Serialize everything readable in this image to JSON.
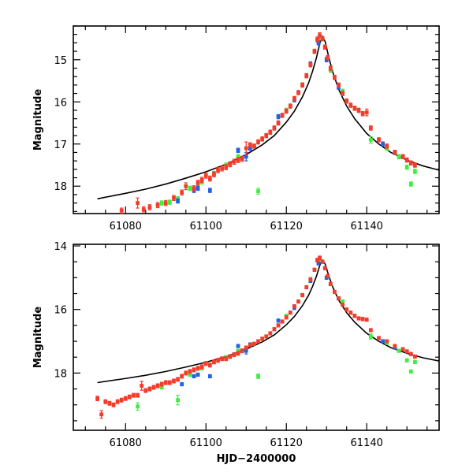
{
  "colors": {
    "red": "#f23c2c",
    "green": "#3ef03e",
    "blue": "#1f63e8",
    "model": "#000000"
  },
  "chart_data": [
    {
      "type": "scatter",
      "ylabel": "Magnitude",
      "xlabel": "",
      "xlim": [
        61067,
        61158
      ],
      "ylim": [
        18.65,
        14.2
      ],
      "xticks": [
        61080,
        61100,
        61120,
        61140
      ],
      "yticks": [
        15,
        16,
        17,
        18
      ],
      "model": {
        "x": [
          61073,
          61080,
          61085,
          61090,
          61095,
          61100,
          61105,
          61110,
          61114,
          61117,
          61120,
          61122,
          61124,
          61125.5,
          61126.5,
          61127.5,
          61128.3,
          61129,
          61129.7,
          61130.5,
          61131.5,
          61133,
          61135,
          61137,
          61140,
          61143,
          61146,
          61150,
          61154,
          61158
        ],
        "y": [
          18.3,
          18.17,
          18.07,
          17.95,
          17.81,
          17.66,
          17.48,
          17.25,
          17.02,
          16.8,
          16.48,
          16.22,
          15.88,
          15.56,
          15.28,
          14.95,
          14.62,
          14.45,
          14.58,
          14.92,
          15.28,
          15.7,
          16.1,
          16.4,
          16.75,
          17.0,
          17.2,
          17.38,
          17.52,
          17.62
        ]
      },
      "series": [
        {
          "name": "red",
          "x": [
            61079,
            61083,
            61084.5,
            61086,
            61088,
            61090,
            61092,
            61094,
            61095,
            61097,
            61098,
            61099,
            61100,
            61101,
            61102,
            61103,
            61104,
            61105,
            61106,
            61107,
            61108,
            61109,
            61110,
            61111,
            61112,
            61113,
            61114,
            61115,
            61116,
            61117,
            61118,
            61119,
            61120,
            61121,
            61122,
            61123,
            61124,
            61125,
            61126,
            61127,
            61127.7,
            61128.3,
            61129,
            61129.6,
            61130.3,
            61131,
            61132,
            61133,
            61134,
            61135,
            61136,
            61137,
            61138,
            61139,
            61140,
            61141,
            61143,
            61145,
            61147,
            61149,
            61150,
            61151,
            61152
          ],
          "y": [
            18.58,
            18.4,
            18.55,
            18.5,
            18.45,
            18.4,
            18.28,
            18.15,
            18.0,
            18.05,
            17.92,
            17.85,
            17.75,
            17.82,
            17.72,
            17.62,
            17.58,
            17.55,
            17.48,
            17.42,
            17.38,
            17.35,
            17.1,
            17.02,
            17.05,
            16.95,
            16.88,
            16.8,
            16.72,
            16.62,
            16.5,
            16.32,
            16.22,
            16.1,
            15.92,
            15.78,
            15.6,
            15.38,
            15.12,
            14.8,
            14.52,
            14.42,
            14.5,
            14.7,
            14.95,
            15.2,
            15.42,
            15.6,
            15.8,
            15.98,
            16.08,
            16.15,
            16.2,
            16.28,
            16.25,
            16.62,
            16.9,
            17.05,
            17.2,
            17.3,
            17.38,
            17.45,
            17.5
          ],
          "err": [
            0.06,
            0.12,
            0.06,
            0.06,
            0.06,
            0.06,
            0.06,
            0.06,
            0.08,
            0.06,
            0.06,
            0.06,
            0.06,
            0.06,
            0.06,
            0.06,
            0.06,
            0.06,
            0.06,
            0.06,
            0.06,
            0.06,
            0.15,
            0.05,
            0.05,
            0.05,
            0.05,
            0.05,
            0.05,
            0.05,
            0.05,
            0.05,
            0.05,
            0.05,
            0.05,
            0.05,
            0.05,
            0.05,
            0.05,
            0.05,
            0.06,
            0.06,
            0.05,
            0.05,
            0.05,
            0.05,
            0.05,
            0.05,
            0.05,
            0.05,
            0.05,
            0.05,
            0.05,
            0.05,
            0.08,
            0.05,
            0.05,
            0.05,
            0.05,
            0.05,
            0.05,
            0.05,
            0.05
          ]
        },
        {
          "name": "green",
          "x": [
            61089,
            61091,
            61093,
            61096,
            61099,
            61102,
            61105,
            61108,
            61113,
            61120,
            61124,
            61128,
            61131,
            61134,
            61137,
            61141,
            61145,
            61148,
            61150,
            61151,
            61152
          ],
          "y": [
            18.4,
            18.38,
            18.3,
            18.05,
            17.9,
            17.7,
            17.5,
            17.3,
            18.12,
            16.2,
            15.6,
            14.55,
            15.25,
            15.75,
            16.15,
            16.9,
            17.1,
            17.3,
            17.55,
            17.95,
            17.65
          ],
          "err": [
            0.05,
            0.05,
            0.05,
            0.05,
            0.05,
            0.05,
            0.05,
            0.05,
            0.07,
            0.05,
            0.05,
            0.05,
            0.05,
            0.05,
            0.05,
            0.08,
            0.05,
            0.05,
            0.05,
            0.05,
            0.05
          ]
        },
        {
          "name": "blue",
          "x": [
            61093,
            61097,
            61098,
            61101,
            61108,
            61110,
            61111,
            61118,
            61122,
            61126,
            61128,
            61130,
            61133,
            61144,
            61147
          ],
          "y": [
            18.35,
            18.1,
            18.05,
            18.1,
            17.15,
            17.3,
            17.1,
            16.35,
            15.95,
            15.1,
            14.6,
            15.0,
            15.65,
            17.0,
            17.2
          ],
          "err": [
            0.05,
            0.05,
            0.05,
            0.05,
            0.05,
            0.1,
            0.05,
            0.05,
            0.05,
            0.05,
            0.05,
            0.05,
            0.05,
            0.05,
            0.05
          ]
        }
      ]
    },
    {
      "type": "scatter",
      "ylabel": "Magnitude",
      "xlabel": "HJD−2400000",
      "xlim": [
        61067,
        61158
      ],
      "ylim": [
        19.8,
        13.95
      ],
      "xticks": [
        61080,
        61100,
        61120,
        61140
      ],
      "yticks": [
        14,
        16,
        18
      ],
      "model": {
        "x": [
          61073,
          61080,
          61085,
          61090,
          61095,
          61100,
          61105,
          61110,
          61114,
          61117,
          61120,
          61122,
          61124,
          61125.5,
          61126.5,
          61127.5,
          61128.3,
          61129,
          61129.7,
          61130.5,
          61131.5,
          61133,
          61135,
          61137,
          61140,
          61143,
          61146,
          61150,
          61154,
          61158
        ],
        "y": [
          18.3,
          18.17,
          18.07,
          17.95,
          17.81,
          17.66,
          17.48,
          17.25,
          17.02,
          16.8,
          16.48,
          16.22,
          15.88,
          15.56,
          15.28,
          14.95,
          14.62,
          14.45,
          14.58,
          14.92,
          15.28,
          15.7,
          16.1,
          16.4,
          16.75,
          17.0,
          17.2,
          17.38,
          17.52,
          17.62
        ]
      },
      "series": [
        {
          "name": "red",
          "x": [
            61073,
            61074,
            61075,
            61076,
            61077,
            61078,
            61079,
            61080,
            61081,
            61082,
            61083,
            61084,
            61085,
            61086,
            61087,
            61088,
            61089,
            61090,
            61091,
            61092,
            61093,
            61094,
            61095,
            61096,
            61097,
            61098,
            61099,
            61100,
            61101,
            61102,
            61103,
            61104,
            61105,
            61106,
            61107,
            61108,
            61109,
            61110,
            61111,
            61112,
            61113,
            61114,
            61115,
            61116,
            61117,
            61118,
            61119,
            61120,
            61121,
            61122,
            61123,
            61124,
            61125,
            61126,
            61127,
            61127.7,
            61128.3,
            61129,
            61129.6,
            61130.3,
            61131,
            61132,
            61133,
            61134,
            61135,
            61136,
            61137,
            61138,
            61139,
            61140,
            61141,
            61143,
            61145,
            61147,
            61149,
            61150,
            61151,
            61152
          ],
          "y": [
            18.8,
            19.3,
            18.9,
            18.95,
            19.0,
            18.9,
            18.85,
            18.8,
            18.75,
            18.7,
            18.7,
            18.4,
            18.55,
            18.5,
            18.45,
            18.4,
            18.35,
            18.3,
            18.3,
            18.25,
            18.2,
            18.1,
            18.0,
            17.95,
            17.9,
            17.85,
            17.8,
            17.7,
            17.75,
            17.65,
            17.6,
            17.55,
            17.55,
            17.48,
            17.42,
            17.38,
            17.3,
            17.2,
            17.12,
            17.08,
            17.0,
            16.92,
            16.85,
            16.75,
            16.62,
            16.5,
            16.38,
            16.25,
            16.1,
            15.9,
            15.75,
            15.55,
            15.3,
            15.05,
            14.75,
            14.45,
            14.38,
            14.5,
            14.7,
            14.95,
            15.2,
            15.45,
            15.65,
            15.85,
            16.0,
            16.1,
            16.2,
            16.28,
            16.3,
            16.32,
            16.65,
            16.9,
            17.0,
            17.15,
            17.25,
            17.32,
            17.4,
            17.48
          ],
          "err": [
            0.07,
            0.12,
            0.06,
            0.06,
            0.06,
            0.06,
            0.06,
            0.06,
            0.06,
            0.06,
            0.06,
            0.14,
            0.06,
            0.06,
            0.06,
            0.06,
            0.06,
            0.06,
            0.06,
            0.06,
            0.06,
            0.06,
            0.06,
            0.06,
            0.06,
            0.06,
            0.06,
            0.06,
            0.06,
            0.06,
            0.06,
            0.06,
            0.06,
            0.06,
            0.06,
            0.06,
            0.06,
            0.05,
            0.05,
            0.05,
            0.05,
            0.05,
            0.05,
            0.05,
            0.05,
            0.05,
            0.05,
            0.05,
            0.05,
            0.05,
            0.05,
            0.05,
            0.05,
            0.05,
            0.05,
            0.06,
            0.06,
            0.05,
            0.05,
            0.05,
            0.05,
            0.05,
            0.05,
            0.05,
            0.05,
            0.05,
            0.05,
            0.05,
            0.05,
            0.05,
            0.05,
            0.05,
            0.05,
            0.05,
            0.05,
            0.05,
            0.05,
            0.05
          ]
        },
        {
          "name": "green",
          "x": [
            61083,
            61089,
            61093,
            61096,
            61099,
            61102,
            61105,
            61108,
            61113,
            61120,
            61124,
            61128,
            61131,
            61134,
            61137,
            61141,
            61145,
            61148,
            61150,
            61151,
            61152
          ],
          "y": [
            19.05,
            18.45,
            18.85,
            18.05,
            17.85,
            17.65,
            17.5,
            17.3,
            18.1,
            16.2,
            15.55,
            14.5,
            15.2,
            15.75,
            16.2,
            16.85,
            17.05,
            17.3,
            17.6,
            17.95,
            17.65
          ],
          "err": [
            0.12,
            0.05,
            0.15,
            0.05,
            0.05,
            0.05,
            0.05,
            0.05,
            0.07,
            0.05,
            0.05,
            0.05,
            0.05,
            0.05,
            0.05,
            0.08,
            0.05,
            0.05,
            0.05,
            0.05,
            0.05
          ]
        },
        {
          "name": "blue",
          "x": [
            61094,
            61097,
            61098,
            61101,
            61108,
            61110,
            61111,
            61118,
            61122,
            61126,
            61128,
            61130,
            61133,
            61144,
            61147
          ],
          "y": [
            18.35,
            18.1,
            18.05,
            18.1,
            17.15,
            17.3,
            17.1,
            16.35,
            15.95,
            15.1,
            14.55,
            15.0,
            15.65,
            17.0,
            17.2
          ],
          "err": [
            0.05,
            0.05,
            0.05,
            0.05,
            0.05,
            0.1,
            0.05,
            0.05,
            0.05,
            0.05,
            0.05,
            0.05,
            0.05,
            0.05,
            0.05
          ]
        }
      ]
    }
  ]
}
